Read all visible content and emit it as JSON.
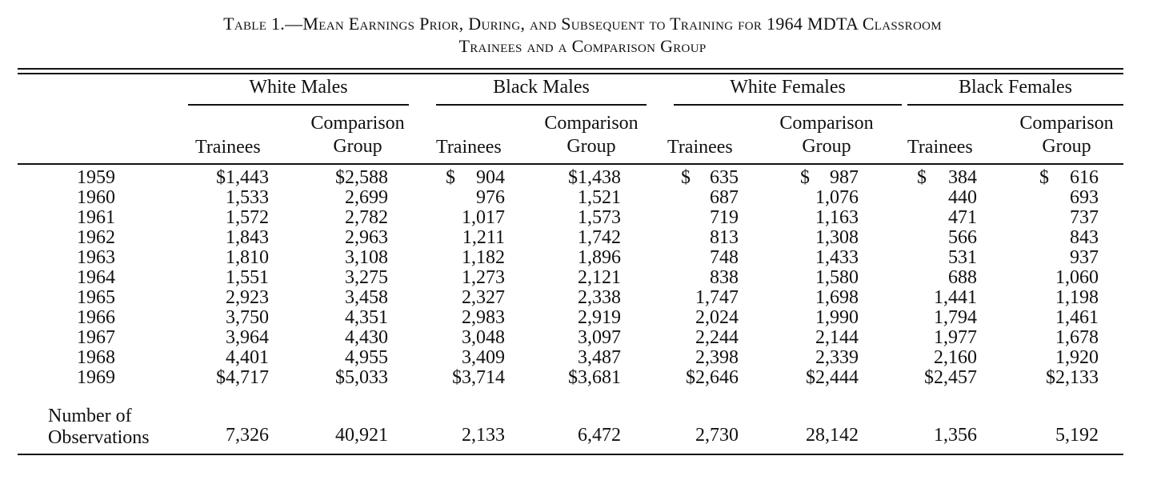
{
  "title": {
    "line1": "Table 1.—Mean Earnings Prior, During, and Subsequent to Training for 1964 MDTA Classroom",
    "line2": "Trainees and a Comparison Group"
  },
  "groups": [
    "White Males",
    "Black Males",
    "White Females",
    "Black Females"
  ],
  "col_trainees": "Trainees",
  "col_comparison_line1": "Comparison",
  "col_comparison_line2": "Group",
  "rows": [
    {
      "year": "1959",
      "v": [
        "$1,443",
        "$2,588",
        "904",
        "$1,438",
        "635",
        "987",
        "384",
        "616"
      ]
    },
    {
      "year": "1960",
      "v": [
        "1,533",
        "2,699",
        "976",
        "1,521",
        "687",
        "1,076",
        "440",
        "693"
      ]
    },
    {
      "year": "1961",
      "v": [
        "1,572",
        "2,782",
        "1,017",
        "1,573",
        "719",
        "1,163",
        "471",
        "737"
      ]
    },
    {
      "year": "1962",
      "v": [
        "1,843",
        "2,963",
        "1,211",
        "1,742",
        "813",
        "1,308",
        "566",
        "843"
      ]
    },
    {
      "year": "1963",
      "v": [
        "1,810",
        "3,108",
        "1,182",
        "1,896",
        "748",
        "1,433",
        "531",
        "937"
      ]
    },
    {
      "year": "1964",
      "v": [
        "1,551",
        "3,275",
        "1,273",
        "2,121",
        "838",
        "1,580",
        "688",
        "1,060"
      ]
    },
    {
      "year": "1965",
      "v": [
        "2,923",
        "3,458",
        "2,327",
        "2,338",
        "1,747",
        "1,698",
        "1,441",
        "1,198"
      ]
    },
    {
      "year": "1966",
      "v": [
        "3,750",
        "4,351",
        "2,983",
        "2,919",
        "2,024",
        "1,990",
        "1,794",
        "1,461"
      ]
    },
    {
      "year": "1967",
      "v": [
        "3,964",
        "4,430",
        "3,048",
        "3,097",
        "2,244",
        "2,144",
        "1,977",
        "1,678"
      ]
    },
    {
      "year": "1968",
      "v": [
        "4,401",
        "4,955",
        "3,409",
        "3,487",
        "2,398",
        "2,339",
        "2,160",
        "1,920"
      ]
    },
    {
      "year": "1969",
      "v": [
        "$4,717",
        "$5,033",
        "$3,714",
        "$3,681",
        "$2,646",
        "$2,444",
        "$2,457",
        "$2,133"
      ]
    }
  ],
  "dollar_sign": "$",
  "obs": {
    "label_line1": "Number of",
    "label_line2": "Observations",
    "v": [
      "7,326",
      "40,921",
      "2,133",
      "6,472",
      "2,730",
      "28,142",
      "1,356",
      "5,192"
    ]
  }
}
